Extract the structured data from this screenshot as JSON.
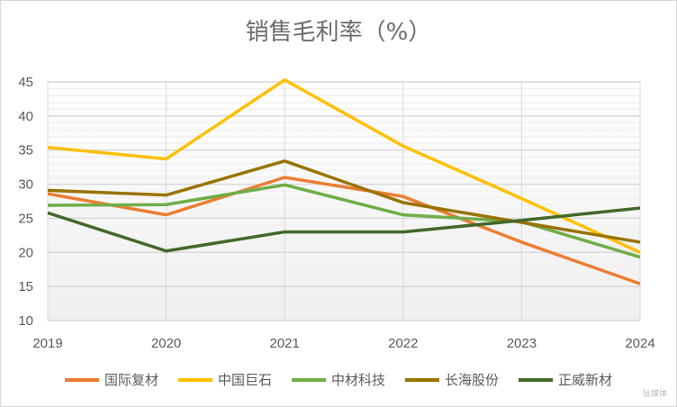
{
  "chart_data": {
    "type": "line",
    "title": "销售毛利率（%）",
    "categories": [
      "2019",
      "2020",
      "2021",
      "2022",
      "2023",
      "2024"
    ],
    "ylim": [
      10,
      45
    ],
    "yticks": [
      10,
      15,
      20,
      25,
      30,
      35,
      40,
      45
    ],
    "grid": true,
    "legend": "bottom",
    "series": [
      {
        "name": "国际复材",
        "color": "#ed7d31",
        "values": [
          28.6,
          25.5,
          31.0,
          28.2,
          21.5,
          15.4
        ]
      },
      {
        "name": "中国巨石",
        "color": "#ffc000",
        "values": [
          35.4,
          33.7,
          45.3,
          35.6,
          27.9,
          20.0
        ]
      },
      {
        "name": "中材科技",
        "color": "#70ad47",
        "values": [
          26.9,
          27.0,
          29.9,
          25.5,
          24.5,
          19.3
        ]
      },
      {
        "name": "长海股份",
        "color": "#997300",
        "values": [
          29.1,
          28.4,
          33.4,
          27.3,
          24.4,
          21.5
        ]
      },
      {
        "name": "正威新材",
        "color": "#43682b",
        "values": [
          25.8,
          20.2,
          23.0,
          23.0,
          24.7,
          26.5
        ]
      }
    ]
  },
  "watermark": "钛媒体"
}
